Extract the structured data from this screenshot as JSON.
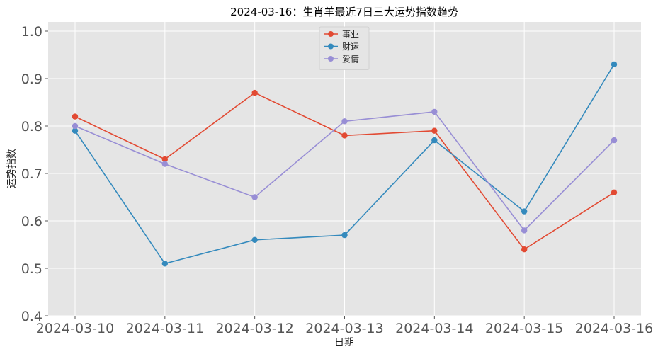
{
  "chart_data": {
    "type": "line",
    "title": "2024-03-16：生肖羊最近7日三大运势指数趋势",
    "xlabel": "日期",
    "ylabel": "运势指数",
    "categories": [
      "2024-03-10",
      "2024-03-11",
      "2024-03-12",
      "2024-03-13",
      "2024-03-14",
      "2024-03-15",
      "2024-03-16"
    ],
    "ylim": [
      0.4,
      1.0
    ],
    "yticks": [
      "0.4",
      "0.5",
      "0.6",
      "0.7",
      "0.8",
      "0.9",
      "1.0"
    ],
    "grid": true,
    "legend_position": "top-center",
    "series": [
      {
        "name": "事业",
        "color": "#E24A33",
        "values": [
          0.82,
          0.73,
          0.87,
          0.78,
          0.79,
          0.54,
          0.66
        ]
      },
      {
        "name": "财运",
        "color": "#348ABD",
        "values": [
          0.79,
          0.51,
          0.56,
          0.57,
          0.77,
          0.62,
          0.93
        ]
      },
      {
        "name": "爱情",
        "color": "#988ED5",
        "values": [
          0.8,
          0.72,
          0.65,
          0.81,
          0.83,
          0.58,
          0.77
        ]
      }
    ]
  }
}
